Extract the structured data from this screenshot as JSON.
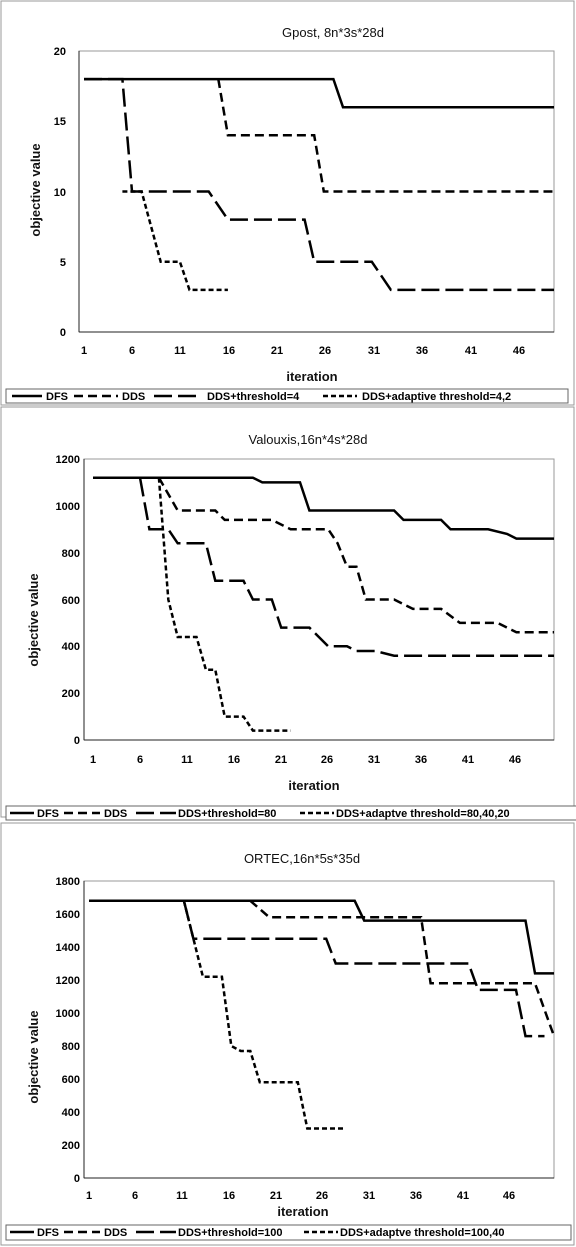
{
  "charts": [
    {
      "title": "Gpost, 8n*3s*28d",
      "xlabel": "iteration",
      "ylabel": "objective value",
      "yticks": [
        "0",
        "5",
        "10",
        "15",
        "20"
      ],
      "xticks": [
        "1",
        "6",
        "11",
        "16",
        "21",
        "26",
        "31",
        "36",
        "41",
        "46"
      ],
      "legend": [
        "DFS",
        "DDS",
        "DDS+threshold=4",
        "DDS+adaptive threshold=4,2"
      ]
    },
    {
      "title": "Valouxis,16n*4s*28d",
      "xlabel": "iteration",
      "ylabel": "objective value",
      "yticks": [
        "0",
        "200",
        "400",
        "600",
        "800",
        "1000",
        "1200"
      ],
      "xticks": [
        "1",
        "6",
        "11",
        "16",
        "21",
        "26",
        "31",
        "36",
        "41",
        "46"
      ],
      "legend": [
        "DFS",
        "DDS",
        "DDS+threshold=80",
        "DDS+adaptve threshold=80,40,20"
      ]
    },
    {
      "title": "ORTEC,16n*5s*35d",
      "xlabel": "iteration",
      "ylabel": "objective value",
      "yticks": [
        "0",
        "200",
        "400",
        "600",
        "800",
        "1000",
        "1200",
        "1400",
        "1600",
        "1800"
      ],
      "xticks": [
        "1",
        "6",
        "11",
        "16",
        "21",
        "26",
        "31",
        "36",
        "41",
        "46"
      ],
      "legend": [
        "DFS",
        "DDS",
        "DDS+threshold=100",
        "DDS+adaptve threshold=100,40"
      ]
    }
  ],
  "chart_data": [
    {
      "type": "line",
      "title": "Gpost, 8n*3s*28d",
      "xlabel": "iteration",
      "ylabel": "objective value",
      "xlim": [
        1,
        50
      ],
      "ylim": [
        0,
        20
      ],
      "grid": false,
      "legend_position": "bottom",
      "series": [
        {
          "name": "DFS",
          "dash": "solid",
          "points": [
            [
              1,
              18
            ],
            [
              27,
              18
            ],
            [
              28,
              16
            ],
            [
              50,
              16
            ]
          ]
        },
        {
          "name": "DDS",
          "dash": "short",
          "points": [
            [
              15,
              18
            ],
            [
              16,
              14
            ],
            [
              25,
              14
            ],
            [
              26,
              10
            ],
            [
              50,
              10
            ]
          ]
        },
        {
          "name": "DDS+threshold=4",
          "dash": "long",
          "points": [
            [
              1,
              18
            ],
            [
              5,
              18
            ],
            [
              6,
              10
            ],
            [
              14,
              10
            ],
            [
              16,
              8
            ],
            [
              24,
              8
            ],
            [
              25,
              5
            ],
            [
              31,
              5
            ],
            [
              33,
              3
            ],
            [
              50,
              3
            ]
          ]
        },
        {
          "name": "DDS+adaptive threshold=4,2",
          "dash": "medium",
          "points": [
            [
              5,
              10
            ],
            [
              7,
              10
            ],
            [
              9,
              5
            ],
            [
              11,
              5
            ],
            [
              12,
              3
            ],
            [
              16,
              3
            ]
          ]
        }
      ]
    },
    {
      "type": "line",
      "title": "Valouxis,16n*4s*28d",
      "xlabel": "iteration",
      "ylabel": "objective value",
      "xlim": [
        1,
        50
      ],
      "ylim": [
        0,
        1200
      ],
      "grid": false,
      "legend_position": "bottom",
      "series": [
        {
          "name": "DFS",
          "dash": "solid",
          "points": [
            [
              1,
              1120
            ],
            [
              18,
              1120
            ],
            [
              19,
              1100
            ],
            [
              23,
              1100
            ],
            [
              24,
              980
            ],
            [
              33,
              980
            ],
            [
              34,
              940
            ],
            [
              38,
              940
            ],
            [
              39,
              900
            ],
            [
              43,
              900
            ],
            [
              45,
              880
            ],
            [
              46,
              860
            ],
            [
              50,
              860
            ]
          ]
        },
        {
          "name": "DDS",
          "dash": "short",
          "points": [
            [
              8,
              1120
            ],
            [
              10,
              980
            ],
            [
              14,
              980
            ],
            [
              15,
              940
            ],
            [
              20,
              940
            ],
            [
              22,
              900
            ],
            [
              26,
              900
            ],
            [
              27,
              840
            ],
            [
              28,
              740
            ],
            [
              29,
              740
            ],
            [
              30,
              600
            ],
            [
              33,
              600
            ],
            [
              35,
              560
            ],
            [
              38,
              560
            ],
            [
              40,
              500
            ],
            [
              44,
              500
            ],
            [
              46,
              460
            ],
            [
              50,
              460
            ]
          ]
        },
        {
          "name": "DDS+threshold=80",
          "dash": "long",
          "points": [
            [
              1,
              1120
            ],
            [
              6,
              1120
            ],
            [
              7,
              900
            ],
            [
              9,
              900
            ],
            [
              10,
              840
            ],
            [
              13,
              840
            ],
            [
              14,
              680
            ],
            [
              17,
              680
            ],
            [
              18,
              600
            ],
            [
              20,
              600
            ],
            [
              21,
              480
            ],
            [
              24,
              480
            ],
            [
              26,
              400
            ],
            [
              28,
              400
            ],
            [
              29,
              380
            ],
            [
              31,
              380
            ],
            [
              33,
              360
            ],
            [
              50,
              360
            ]
          ]
        },
        {
          "name": "DDS+adaptve threshold=80,40,20",
          "dash": "medium",
          "points": [
            [
              8,
              1120
            ],
            [
              9,
              600
            ],
            [
              10,
              440
            ],
            [
              12,
              440
            ],
            [
              13,
              300
            ],
            [
              14,
              300
            ],
            [
              15,
              100
            ],
            [
              17,
              100
            ],
            [
              18,
              40
            ],
            [
              22,
              40
            ]
          ]
        }
      ]
    },
    {
      "type": "line",
      "title": "ORTEC,16n*5s*35d",
      "xlabel": "iteration",
      "ylabel": "objective value",
      "xlim": [
        1,
        50
      ],
      "ylim": [
        0,
        1800
      ],
      "grid": false,
      "legend_position": "bottom",
      "series": [
        {
          "name": "DFS",
          "dash": "solid",
          "points": [
            [
              1,
              1680
            ],
            [
              29,
              1680
            ],
            [
              30,
              1560
            ],
            [
              47,
              1560
            ],
            [
              48,
              1240
            ],
            [
              50,
              1240
            ]
          ]
        },
        {
          "name": "DDS",
          "dash": "short",
          "points": [
            [
              18,
              1680
            ],
            [
              20,
              1580
            ],
            [
              36,
              1580
            ],
            [
              37,
              1180
            ],
            [
              48,
              1180
            ],
            [
              50,
              860
            ]
          ]
        },
        {
          "name": "DDS+threshold=100",
          "dash": "long",
          "points": [
            [
              1,
              1680
            ],
            [
              11,
              1680
            ],
            [
              12,
              1450
            ],
            [
              26,
              1450
            ],
            [
              27,
              1300
            ],
            [
              41,
              1300
            ],
            [
              42,
              1140
            ],
            [
              46,
              1140
            ],
            [
              47,
              860
            ],
            [
              49,
              860
            ]
          ]
        },
        {
          "name": "DDS+adaptve threshold=100,40",
          "dash": "medium",
          "points": [
            [
              11,
              1680
            ],
            [
              13,
              1220
            ],
            [
              15,
              1220
            ],
            [
              16,
              800
            ],
            [
              17,
              770
            ],
            [
              18,
              770
            ],
            [
              19,
              580
            ],
            [
              23,
              580
            ],
            [
              24,
              300
            ],
            [
              28,
              300
            ]
          ]
        }
      ]
    }
  ]
}
